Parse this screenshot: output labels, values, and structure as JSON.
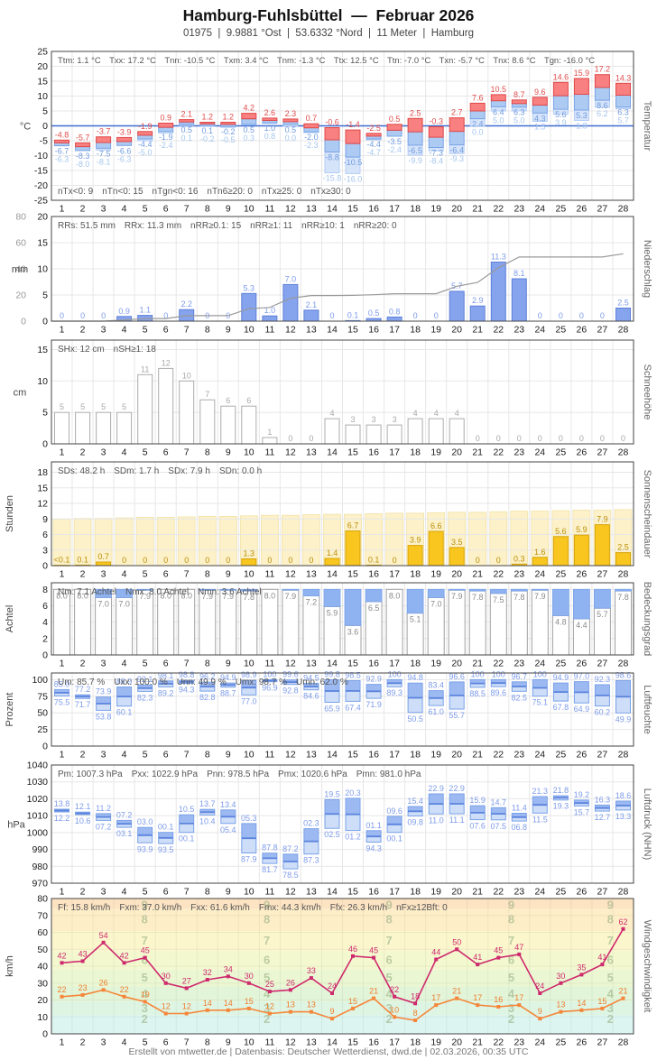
{
  "header": {
    "title": "Hamburg-Fuhlsbüttel  —  Februar 2026",
    "subtitle": "01975  |  9.9881 °Ost  |  53.6332 °Nord  |  11 Meter  |  Hamburg"
  },
  "footer": {
    "credit": "Erstellt von mtwetter.de | Datenbasis: Deutscher Wetterdienst, dwd.de | 02.03.2026, 00:35 UTC"
  },
  "days": [
    1,
    2,
    3,
    4,
    5,
    6,
    7,
    8,
    9,
    10,
    11,
    12,
    13,
    14,
    15,
    16,
    17,
    18,
    19,
    20,
    21,
    22,
    23,
    24,
    25,
    26,
    27,
    28
  ],
  "colors": {
    "temp_max_fill": "#f88080",
    "temp_max_stroke": "#e04848",
    "temp_max_label": "#e04c4c",
    "temp_min_fill": "#accaf2",
    "temp_min_stroke": "#7aa4e6",
    "temp_min_label": "#6f9be0",
    "temp_ground_fill": "#d6e4fa",
    "temp_ground_stroke": "#b4cdf4",
    "temp_ground_label": "#a6c6ee",
    "zero_line": "#3f6fd1",
    "rain_fill": "#86a3ee",
    "rain_stroke": "#5d80d8",
    "rain_label": "#7d9bea",
    "cum_line": "#9a9a9a",
    "snow_stroke": "#acacac",
    "snow_label": "#a8a8a8",
    "sun_fill": "#f8c61e",
    "sun_stroke": "#d8a50c",
    "sun_label": "#bd8f06",
    "sun_bg_fill": "#fcf1c9",
    "sun_bg_stroke": "#f1e1a6",
    "cloud_stroke": "#a0a0a0",
    "cloud_cap_fill": "#8fb2f0",
    "cloud_label": "#8a8a8a",
    "range_hi_fill": "#9db9f2",
    "range_lo_fill": "#cedef8",
    "range_stroke": "#7aa2e8",
    "range_mean": "#5b84dd",
    "range_label": "#7d9bea",
    "gust_line": "#ce2a6e",
    "mean_wind_line": "#f5863a",
    "mean_wind_label": "#ef7d2e",
    "stats_text": "#555555",
    "axis_text": "#1a1a1a",
    "axis_title": "#666666",
    "grid": "#e7e7e7",
    "border": "#444444",
    "bft_digit": "rgba(150,175,130,0.6)"
  },
  "chart_data": [
    {
      "id": "temperature",
      "type": "range-bar-3",
      "axis_title": "Temperatur",
      "unit": "°C",
      "ylim": [
        -25,
        25
      ],
      "yticks": [
        -25,
        -20,
        -15,
        -10,
        -5,
        0,
        5,
        10,
        15,
        20,
        25
      ],
      "stats_top": [
        "Ttm: 1.1 °C",
        "Txx: 17.2 °C",
        "Tnn: -10.5 °C",
        "Txm: 3.4 °C",
        "Tnm: -1.3 °C",
        "Ttx: 12.5 °C",
        "Ttn: -7.0 °C",
        "Txn: -5.7 °C",
        "Tnx: 8.6 °C",
        "Tgn: -16.0 °C"
      ],
      "stats_bottom": [
        "nTx<0: 9",
        "nTn<0: 15",
        "nTgn<0: 16",
        "nTn6≥20: 0",
        "nTx≥25: 0",
        "nTx≥30: 0"
      ],
      "tmax": [
        -4.8,
        -5.7,
        -3.7,
        -3.9,
        -1.9,
        0.9,
        2.1,
        1.2,
        1.2,
        4.2,
        2.6,
        2.3,
        0.7,
        -0.6,
        -1.4,
        -2.5,
        0.5,
        2.5,
        -0.3,
        2.7,
        7.6,
        10.5,
        8.7,
        9.6,
        14.6,
        15.9,
        17.2,
        14.3
      ],
      "tmin": [
        -6.7,
        -8.3,
        -7.5,
        -6.6,
        -4.4,
        -1.9,
        0.5,
        0.1,
        -0.2,
        0.5,
        1.0,
        0.5,
        -2.0,
        -8.8,
        -10.5,
        -4.4,
        -3.5,
        -6.5,
        -7.3,
        -6.4,
        2.4,
        6.4,
        6.3,
        4.3,
        5.6,
        5.3,
        8.6,
        6.3
      ],
      "tground": [
        -6.3,
        -8.0,
        -8.1,
        -6.3,
        -5.0,
        -2.4,
        0.1,
        -0.2,
        -0.5,
        0.3,
        0.8,
        0.0,
        -2.3,
        -15.8,
        -16.0,
        -4.7,
        -2.4,
        -9.9,
        -8.4,
        -9.3,
        0.0,
        5.0,
        5.0,
        1.5,
        3.9,
        1.8,
        6.2,
        5.7
      ]
    },
    {
      "id": "precipitation",
      "type": "bar-cumline",
      "axis_title": "Niederschlag",
      "unit": "mm",
      "ylim": [
        0,
        20
      ],
      "yticks": [
        0,
        5,
        10,
        15,
        20
      ],
      "yticks2": [
        0,
        20,
        40,
        60,
        80
      ],
      "ylim2": [
        0,
        80
      ],
      "stats": [
        "RRs: 51.5 mm",
        "RRx: 11.3 mm",
        "nRR≥0.1: 15",
        "nRR≥1: 11",
        "nRR≥10: 1",
        "nRR≥20: 0"
      ],
      "values": [
        0,
        0,
        0,
        0.9,
        1.1,
        0,
        2.2,
        0,
        0,
        5.3,
        1.0,
        7.0,
        2.1,
        0,
        0.1,
        0.5,
        0.8,
        0,
        0,
        5.7,
        2.9,
        11.3,
        8.1,
        0,
        0,
        0,
        0,
        2.5
      ]
    },
    {
      "id": "snow",
      "type": "bar",
      "axis_title": "Schneehöhe",
      "unit": "cm",
      "ylim": [
        0,
        16.5
      ],
      "yticks": [
        0,
        5,
        10,
        15
      ],
      "stats": [
        "SHx: 12 cm",
        "nSH≥1: 18"
      ],
      "values": [
        5,
        5,
        5,
        5,
        11,
        12,
        10,
        7,
        6,
        6,
        1,
        0,
        0,
        4,
        3,
        3,
        3,
        4,
        4,
        4,
        0,
        0,
        0,
        0,
        0,
        0,
        0,
        0
      ]
    },
    {
      "id": "sunshine",
      "type": "bar-bg",
      "axis_title": "Sonnenscheindauer",
      "unit": "Stunden",
      "ylim": [
        0,
        20
      ],
      "yticks": [
        0,
        3,
        6,
        9,
        12,
        15,
        18
      ],
      "stats": [
        "SDs: 48.2 h",
        "SDm: 1.7 h",
        "SDx: 7.9 h",
        "SDn: 0.0 h"
      ],
      "values": [
        0.05,
        0.1,
        0.7,
        0,
        0,
        0,
        0,
        0,
        0,
        1.3,
        0,
        0,
        0,
        1.4,
        6.7,
        0.1,
        0,
        3.9,
        6.6,
        3.5,
        0,
        0,
        0.3,
        1.6,
        5.6,
        5.9,
        7.9,
        2.5
      ],
      "labels": [
        "<0.1",
        "0.1",
        "0.7",
        "0",
        "0",
        "0",
        "0",
        "0",
        "0",
        "1.3",
        "0",
        "0",
        "0",
        "1.4",
        "6.7",
        "0.1",
        "0",
        "3.9",
        "6.6",
        "3.5",
        "0",
        "0",
        "0.3",
        "1.6",
        "5.6",
        "5.9",
        "7.9",
        "2.5"
      ],
      "daylight": [
        9.0,
        9.1,
        9.1,
        9.2,
        9.3,
        9.3,
        9.4,
        9.5,
        9.5,
        9.6,
        9.7,
        9.7,
        9.8,
        9.9,
        9.9,
        10.0,
        10.1,
        10.1,
        10.2,
        10.3,
        10.3,
        10.4,
        10.5,
        10.5,
        10.6,
        10.7,
        10.7,
        10.8
      ]
    },
    {
      "id": "cloud",
      "type": "cloud-bar",
      "axis_title": "Bedeckungsgrad",
      "unit": "Achtel",
      "ylim": [
        0,
        8.8
      ],
      "yticks": [
        0,
        2,
        4,
        6,
        8
      ],
      "full": 8,
      "stats": [
        "Nm: 7.1 Achtel",
        "Nmx: 8.0 Achtel",
        "Nmn: 3.6 Achtel"
      ],
      "values": [
        8.0,
        8.0,
        7.0,
        7.0,
        7.9,
        8.0,
        8.0,
        7.9,
        7.9,
        7.8,
        8.0,
        7.9,
        7.2,
        5.9,
        3.6,
        6.5,
        8.0,
        5.1,
        7.0,
        7.9,
        7.8,
        7.5,
        7.8,
        7.9,
        4.8,
        4.4,
        5.7,
        7.8
      ]
    },
    {
      "id": "humidity",
      "type": "range-bar-2",
      "axis_title": "Luftfeuchte",
      "unit": "Prozent",
      "ylim": [
        0,
        110
      ],
      "yticks": [
        0,
        25,
        50,
        75,
        100
      ],
      "label_mode": "percent",
      "stats": [
        "Um: 85.7 %",
        "Uxx: 100.0 %",
        "Unn: 49.9 %",
        "Umx: 98.7 %",
        "Umn: 62.0 %"
      ],
      "max": [
        85.0,
        77.2,
        73.9,
        88.9,
        92.1,
        98.1,
        98.8,
        96.2,
        94.9,
        98.9,
        100,
        99.6,
        94.5,
        99.8,
        98.5,
        92.9,
        100,
        94.8,
        83.4,
        96.6,
        100,
        100,
        96.7,
        100,
        94.9,
        97.0,
        92.3,
        98.6
      ],
      "min": [
        75.5,
        71.7,
        53.8,
        60.1,
        82.3,
        89.2,
        94.3,
        82.8,
        88.7,
        77.0,
        96.9,
        92.8,
        84.6,
        65.9,
        67.4,
        71.9,
        89.3,
        50.5,
        61.0,
        55.7,
        88.5,
        89.6,
        82.5,
        75.1,
        67.8,
        64.9,
        60.2,
        49.9
      ]
    },
    {
      "id": "pressure",
      "type": "range-bar-2",
      "axis_title": "Luftdruck (NHN)",
      "unit": "hPa",
      "ylim": [
        970,
        1040
      ],
      "yticks": [
        970,
        980,
        990,
        1000,
        1010,
        1020,
        1030,
        1040
      ],
      "label_mode": "hpa",
      "stats": [
        "Pm: 1007.3 hPa",
        "Pxx: 1022.9 hPa",
        "Pnn: 978.5 hPa",
        "Pmx: 1020.6 hPa",
        "Pmn: 981.0 hPa"
      ],
      "max": [
        1013.8,
        1012.1,
        1011.2,
        1007.2,
        1003.0,
        1000.1,
        1010.5,
        1013.7,
        1013.4,
        1005.3,
        987.8,
        987.2,
        1002.3,
        1019.5,
        1020.3,
        1001.1,
        1009.6,
        1015.4,
        1022.9,
        1022.9,
        1015.9,
        1014.7,
        1011.4,
        1021.3,
        1021.8,
        1019.2,
        1016.3,
        1018.6
      ],
      "min": [
        1012.2,
        1010.6,
        1007.2,
        1003.1,
        993.9,
        993.5,
        1000.1,
        1010.4,
        1005.4,
        987.9,
        981.7,
        978.5,
        987.3,
        1002.5,
        1001.2,
        994.3,
        1000.1,
        1009.8,
        1011.0,
        1011.1,
        1007.6,
        1007.5,
        1006.8,
        1011.5,
        1019.3,
        1015.7,
        1012.7,
        1013.3
      ]
    },
    {
      "id": "wind",
      "type": "two-lines",
      "axis_title": "Windgeschwindigkeit",
      "unit": "km/h",
      "ylim": [
        0,
        80
      ],
      "yticks": [
        0,
        10,
        20,
        30,
        40,
        50,
        60,
        70,
        80
      ],
      "stats": [
        "Ff: 15.8 km/h",
        "Fxm: 37.0 km/h",
        "Fxx: 61.6 km/h",
        "Fmx: 44.3 km/h",
        "Ffx: 26.3 km/h",
        "nFx≥12Bft: 0"
      ],
      "gusts": [
        42,
        43,
        54,
        42,
        45,
        30,
        27,
        32,
        34,
        30,
        25,
        26,
        33,
        24,
        46,
        45,
        22,
        18,
        44,
        50,
        41,
        45,
        47,
        24,
        30,
        35,
        41,
        62
      ],
      "means": [
        22,
        23,
        26,
        22,
        19,
        12,
        12,
        14,
        14,
        15,
        12,
        13,
        13,
        9,
        15,
        21,
        10,
        8,
        17,
        21,
        17,
        16,
        17,
        9,
        13,
        14,
        15,
        21
      ],
      "beaufort_bands": [
        {
          "bft": 1,
          "to": 11,
          "color": "#dcf5f0"
        },
        {
          "bft": 3,
          "to": 19,
          "color": "#def5e4"
        },
        {
          "bft": 4,
          "to": 28,
          "color": "#e3f5d8"
        },
        {
          "bft": 5,
          "to": 38,
          "color": "#ebf7d2"
        },
        {
          "bft": 6,
          "to": 49,
          "color": "#f4f8cf"
        },
        {
          "bft": 7,
          "to": 61,
          "color": "#fbf6cc"
        },
        {
          "bft": 8,
          "to": 74,
          "color": "#fdeec8"
        },
        {
          "bft": 9,
          "to": 88,
          "color": "#fce3c2"
        }
      ],
      "beaufort_digits": [
        [
          2,
          8.5
        ],
        [
          3,
          15
        ],
        [
          4,
          23.5
        ],
        [
          5,
          33
        ],
        [
          6,
          43.5
        ],
        [
          7,
          55
        ],
        [
          8,
          67.5
        ],
        [
          9,
          76
        ]
      ]
    }
  ]
}
